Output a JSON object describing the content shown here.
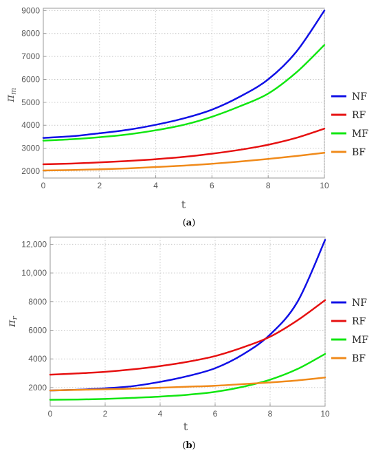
{
  "chart_data": [
    {
      "type": "line",
      "panel": "(a)",
      "caption_open": "(",
      "caption_letter": "a",
      "caption_close": ")",
      "xlabel": "t",
      "ylabel": "π",
      "ylabel_sub": "m",
      "xlim": [
        0,
        10
      ],
      "ylim": [
        1700,
        9100
      ],
      "xticks": [
        0,
        2,
        4,
        6,
        8,
        10
      ],
      "xtick_labels": [
        "0",
        "2",
        "4",
        "6",
        "8",
        "10"
      ],
      "yticks": [
        2000,
        3000,
        4000,
        5000,
        6000,
        7000,
        8000,
        9000
      ],
      "ytick_labels": [
        "2000",
        "3000",
        "4000",
        "5000",
        "6000",
        "7000",
        "8000",
        "9000"
      ],
      "grid": true,
      "legend_placement": "right",
      "x": [
        0,
        1,
        2,
        3,
        4,
        5,
        6,
        7,
        8,
        9,
        10
      ],
      "series": [
        {
          "name": "NF",
          "color": "#1010e6",
          "values": [
            3450,
            3520,
            3650,
            3800,
            4020,
            4300,
            4680,
            5250,
            6000,
            7200,
            9000
          ]
        },
        {
          "name": "RF",
          "color": "#e61010",
          "values": [
            2300,
            2330,
            2380,
            2440,
            2520,
            2620,
            2760,
            2930,
            3150,
            3450,
            3850
          ]
        },
        {
          "name": "MF",
          "color": "#10e610",
          "values": [
            3330,
            3390,
            3480,
            3600,
            3780,
            4020,
            4370,
            4830,
            5380,
            6300,
            7500
          ]
        },
        {
          "name": "BF",
          "color": "#f08a1a",
          "values": [
            2030,
            2050,
            2080,
            2120,
            2180,
            2240,
            2320,
            2420,
            2530,
            2660,
            2800
          ]
        }
      ]
    },
    {
      "type": "line",
      "panel": "(b)",
      "caption_open": "(",
      "caption_letter": "b",
      "caption_close": ")",
      "xlabel": "t",
      "ylabel": "π",
      "ylabel_sub": "r",
      "xlim": [
        0,
        10
      ],
      "ylim": [
        700,
        12500
      ],
      "xticks": [
        0,
        2,
        4,
        6,
        8,
        10
      ],
      "xtick_labels": [
        "0",
        "2",
        "4",
        "6",
        "8",
        "10"
      ],
      "yticks": [
        2000,
        4000,
        6000,
        8000,
        10000,
        12000
      ],
      "ytick_labels": [
        "2000",
        "4000",
        "6000",
        "8000",
        "10,000",
        "12,000"
      ],
      "grid": true,
      "legend_placement": "right",
      "x": [
        0,
        1,
        2,
        3,
        4,
        5,
        6,
        7,
        8,
        9,
        10
      ],
      "series": [
        {
          "name": "NF",
          "color": "#1010e6",
          "values": [
            1800,
            1850,
            1950,
            2100,
            2400,
            2800,
            3350,
            4300,
            5700,
            8000,
            12300
          ]
        },
        {
          "name": "RF",
          "color": "#e61010",
          "values": [
            2900,
            2990,
            3100,
            3270,
            3500,
            3800,
            4200,
            4800,
            5550,
            6700,
            8100
          ]
        },
        {
          "name": "MF",
          "color": "#10e610",
          "values": [
            1150,
            1170,
            1210,
            1280,
            1370,
            1500,
            1700,
            2050,
            2550,
            3300,
            4350
          ]
        },
        {
          "name": "BF",
          "color": "#f08a1a",
          "values": [
            1800,
            1840,
            1880,
            1930,
            1990,
            2060,
            2130,
            2240,
            2360,
            2500,
            2700
          ]
        }
      ]
    }
  ]
}
